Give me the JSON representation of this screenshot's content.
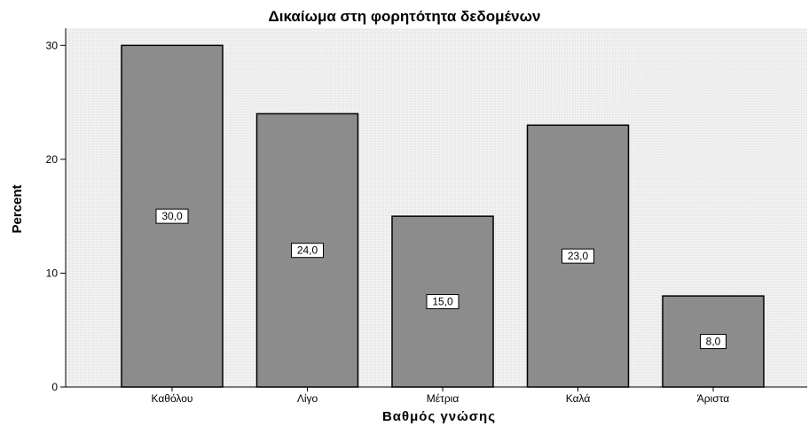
{
  "chart_data": {
    "type": "bar",
    "title": "Δικαίωμα στη φορητότητα δεδομένων",
    "xlabel": "Βαθμός γνώσης",
    "ylabel": "Percent",
    "categories": [
      "Καθόλου",
      "Λίγο",
      "Μέτρια",
      "Καλά",
      "Άριστα"
    ],
    "values": [
      30,
      24,
      15,
      23,
      8
    ],
    "data_labels": [
      "30,0",
      "24,0",
      "15,0",
      "23,0",
      "8,0"
    ],
    "yticks": [
      0,
      10,
      20,
      30
    ],
    "ylim": [
      0,
      31.5
    ],
    "grid": false,
    "colors": {
      "bar": "#8c8c8c",
      "bar_stroke": "#000000",
      "plot_bg": "#f0f0f0"
    }
  }
}
